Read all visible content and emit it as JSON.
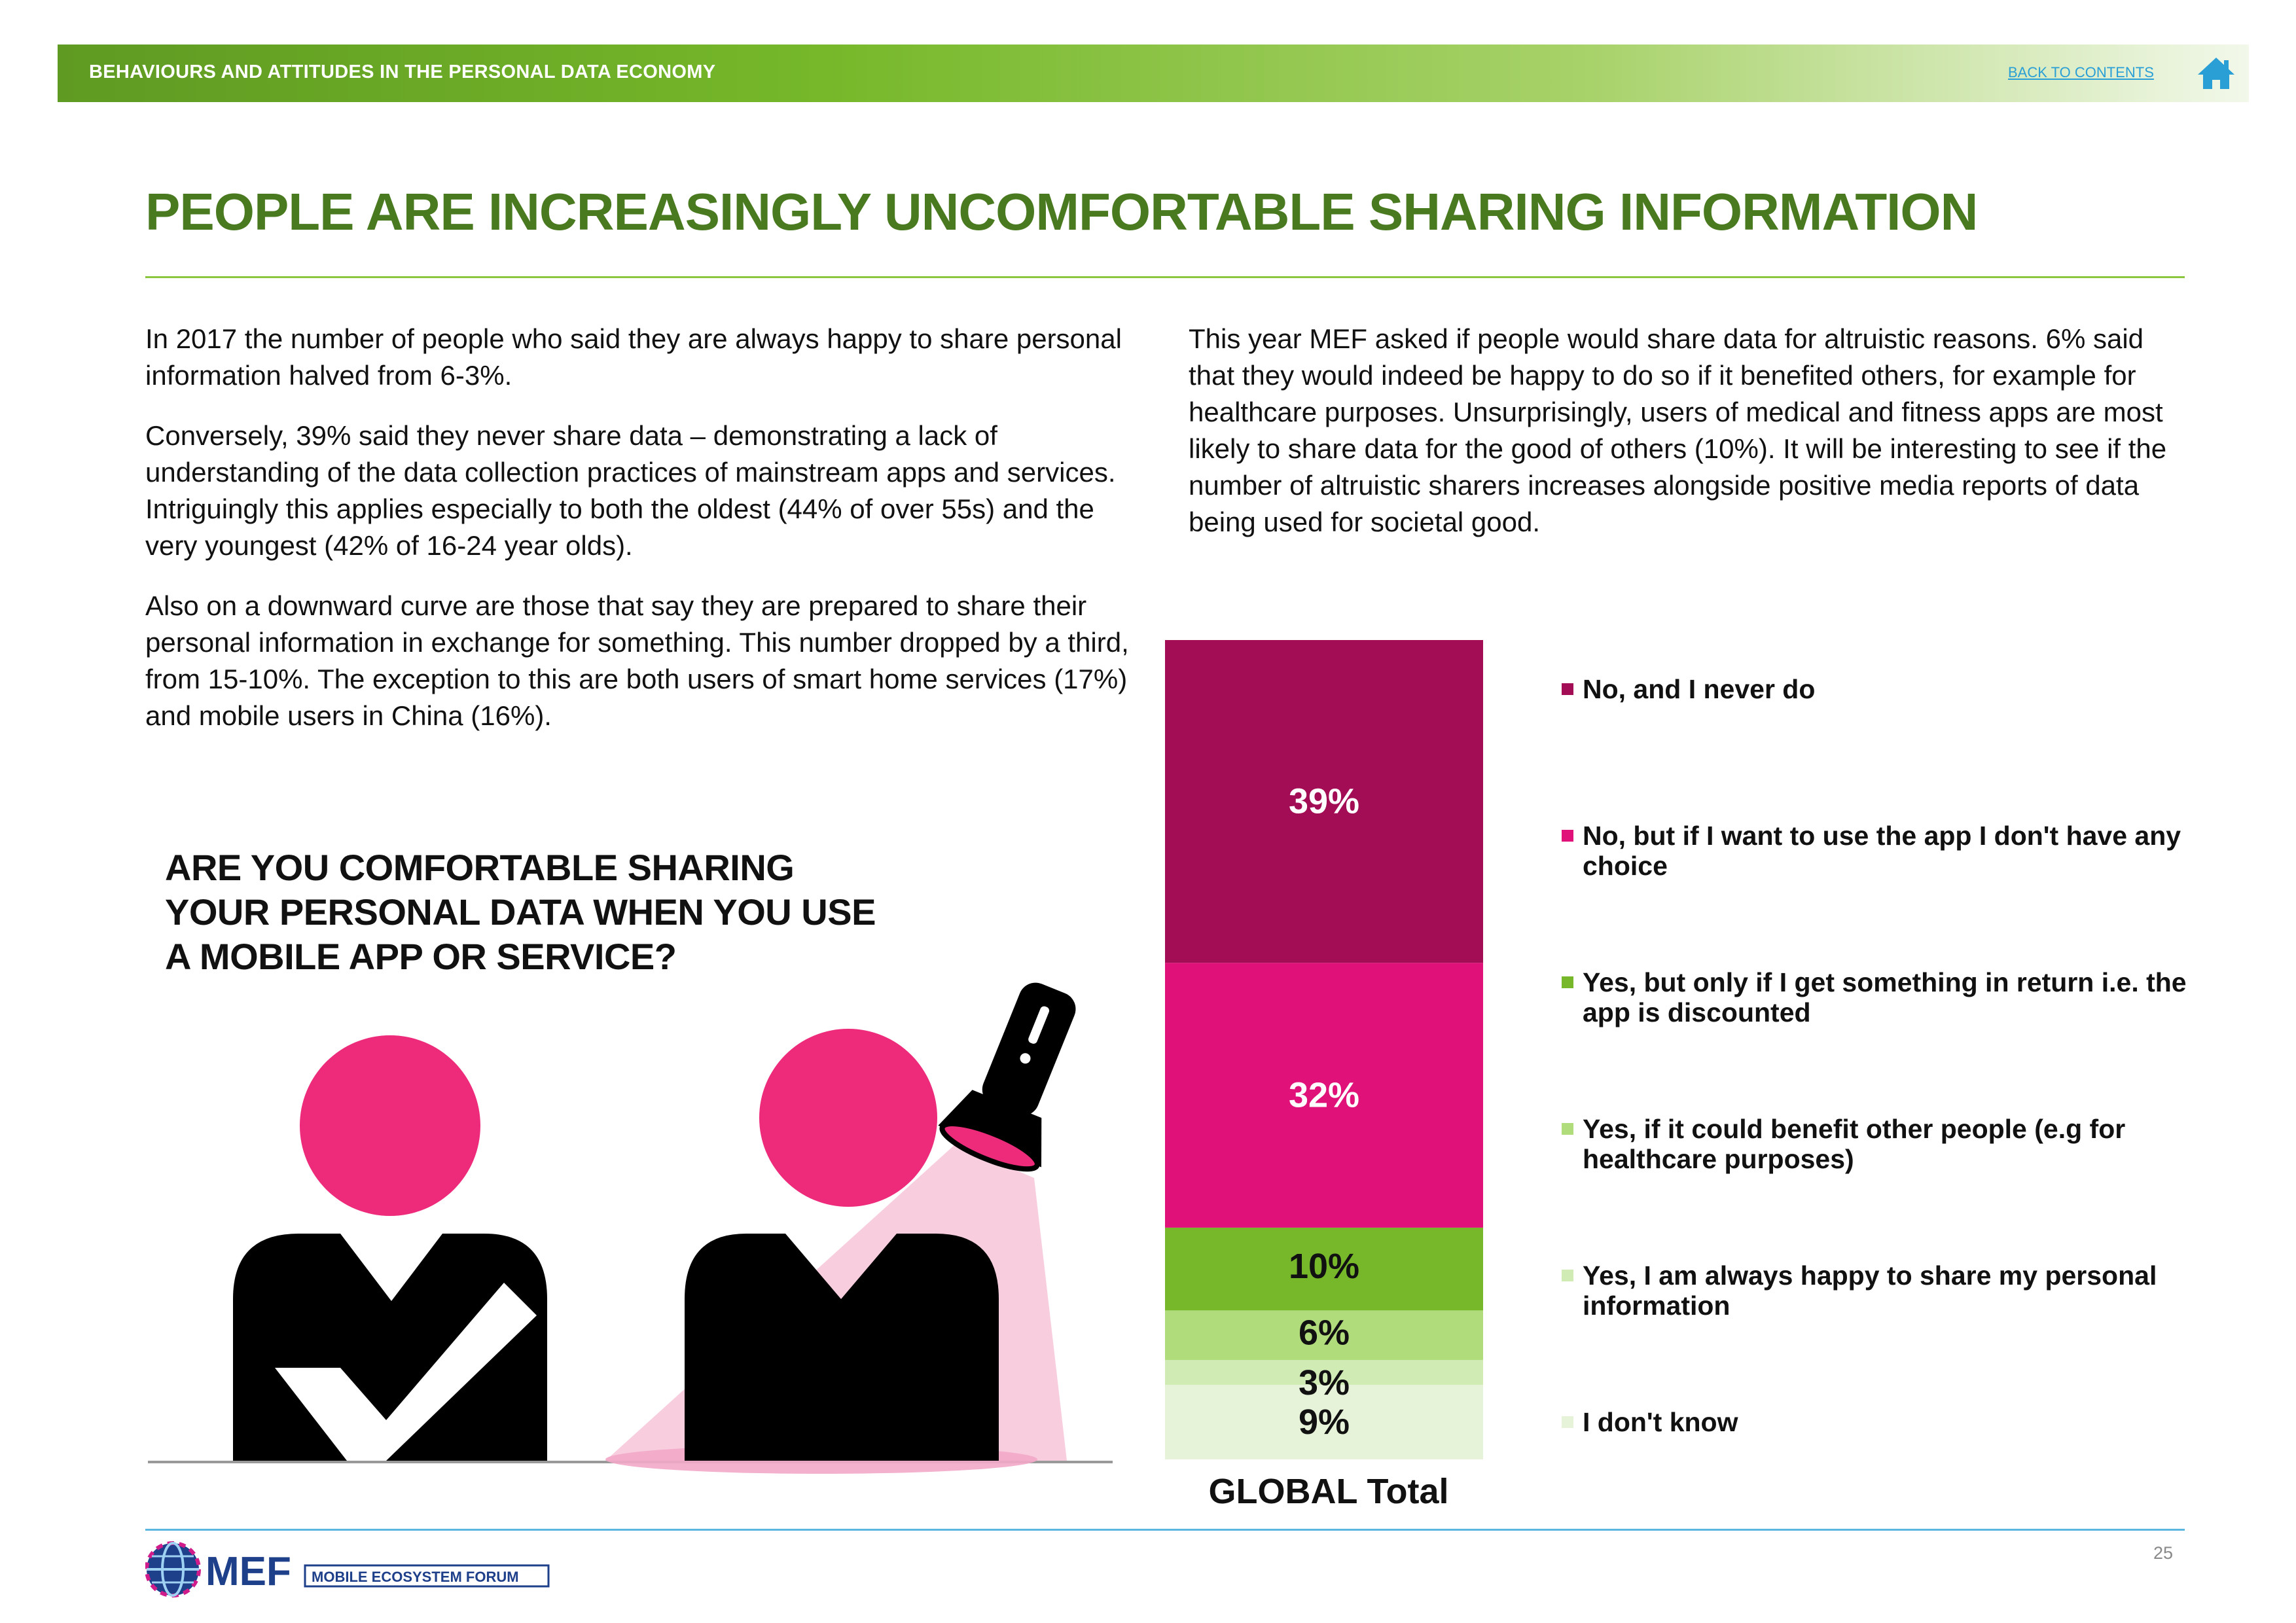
{
  "header": {
    "section_title": "BEHAVIOURS AND ATTITUDES IN THE PERSONAL DATA ECONOMY",
    "back_link": "BACK TO CONTENTS"
  },
  "page_title": "PEOPLE ARE INCREASINGLY UNCOMFORTABLE SHARING INFORMATION",
  "left_column": {
    "p1": "In 2017 the number of people who said they are always happy to share personal information halved from 6-3%.",
    "p2": "Conversely, 39% said they never share data – demonstrating a lack of understanding of the data collection practices of mainstream apps and services. Intriguingly this applies especially to both the oldest (44% of over 55s) and the very youngest (42% of 16-24 year olds).",
    "p3": "Also on a downward curve are those that say they are prepared to share their personal information in exchange for something. This number dropped by a third, from 15-10%. The exception to this are both users of smart home services (17%) and mobile users in China (16%)."
  },
  "right_column": {
    "p1": "This year MEF asked if people would share data for altruistic reasons. 6% said that they would indeed be happy to do so if it benefited others, for example for healthcare purposes. Unsurprisingly, users of medical and fitness apps are most likely to share data for the good of others (10%). It will be interesting to see if the number of altruistic sharers increases alongside positive media reports of data being used for societal good."
  },
  "question": "ARE YOU COMFORTABLE SHARING YOUR PERSONAL DATA WHEN YOU USE A MOBILE APP OR SERVICE?",
  "chart_data": {
    "type": "bar",
    "stacked": true,
    "categories": [
      "GLOBAL Total"
    ],
    "series": [
      {
        "name": "No, and I never do",
        "values": [
          39
        ],
        "color": "#a30d55",
        "label": "39%"
      },
      {
        "name": "No, but if I want to use the app I don't have any choice",
        "values": [
          32
        ],
        "color": "#e01179",
        "label": "32%"
      },
      {
        "name": "Yes, but only if I get something in return i.e. the app is discounted",
        "values": [
          10
        ],
        "color": "#76b82a",
        "label": "10%"
      },
      {
        "name": "Yes, if it could benefit other people (e.g for healthcare purposes)",
        "values": [
          6
        ],
        "color": "#b0dc7c",
        "label": "6%"
      },
      {
        "name": "Yes, I am always happy to share my personal information",
        "values": [
          3
        ],
        "color": "#d0ebb4",
        "label": "3%"
      },
      {
        "name": "I don't know",
        "values": [
          9
        ],
        "color": "#e6f3d8",
        "label": "9%"
      }
    ],
    "legend_position": "right",
    "ylim": [
      0,
      99
    ]
  },
  "footer": {
    "logo_text": "MEF",
    "logo_tagline": "MOBILE ECOSYSTEM FORUM",
    "page_number": "25"
  },
  "colors": {
    "title_green": "#4a7a20",
    "rule_green": "#8cc63f",
    "pink": "#ee2a7b",
    "link_blue": "#2a9fd6"
  },
  "icons": [
    "home-icon",
    "person-check-icon",
    "person-spotlight-icon",
    "flashlight-icon",
    "globe-logo-icon"
  ]
}
